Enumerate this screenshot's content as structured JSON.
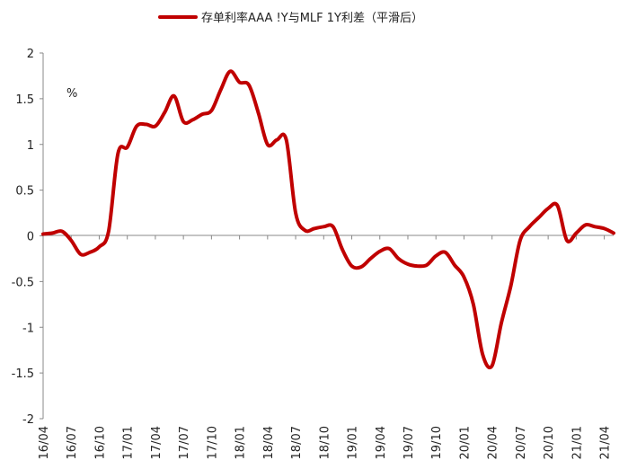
{
  "chart_data": {
    "type": "line",
    "title": "",
    "unit": "%",
    "xlabel": "",
    "ylabel": "",
    "ylim": [
      -2,
      2
    ],
    "yticks": [
      2,
      1.5,
      1,
      0.5,
      0,
      -0.5,
      -1,
      -1.5,
      -2
    ],
    "ytick_labels": [
      "2",
      "1.5",
      "1",
      "0.5",
      "0",
      "-0.5",
      "-1",
      "-1.5",
      "-2"
    ],
    "xlim": [
      "2016-04",
      "2021-05"
    ],
    "xticks": [
      "16/04",
      "16/07",
      "16/10",
      "17/01",
      "17/04",
      "17/07",
      "17/10",
      "18/01",
      "18/04",
      "18/07",
      "18/10",
      "19/01",
      "19/04",
      "19/07",
      "19/10",
      "20/01",
      "20/04",
      "20/07",
      "20/10",
      "21/01",
      "21/04"
    ],
    "grid": false,
    "legend_position": "top-center",
    "colors": {
      "series": "#c00000",
      "axis": "#888888",
      "text": "#222222"
    },
    "series": [
      {
        "name": "存单利率AAA !Y与MLF 1Y利差（平滑后）",
        "x": [
          "2016-04",
          "2016-05",
          "2016-06",
          "2016-07",
          "2016-08",
          "2016-09",
          "2016-10",
          "2016-11",
          "2016-12",
          "2017-01",
          "2017-02",
          "2017-03",
          "2017-04",
          "2017-05",
          "2017-06",
          "2017-07",
          "2017-08",
          "2017-09",
          "2017-10",
          "2017-11",
          "2017-12",
          "2018-01",
          "2018-02",
          "2018-03",
          "2018-04",
          "2018-05",
          "2018-06",
          "2018-07",
          "2018-08",
          "2018-09",
          "2018-10",
          "2018-11",
          "2018-12",
          "2019-01",
          "2019-02",
          "2019-03",
          "2019-04",
          "2019-05",
          "2019-06",
          "2019-07",
          "2019-08",
          "2019-09",
          "2019-10",
          "2019-11",
          "2019-12",
          "2020-01",
          "2020-02",
          "2020-03",
          "2020-04",
          "2020-05",
          "2020-06",
          "2020-07",
          "2020-08",
          "2020-09",
          "2020-10",
          "2020-11",
          "2020-12",
          "2021-01",
          "2021-02",
          "2021-03",
          "2021-04",
          "2021-05"
        ],
        "values": [
          0.02,
          0.03,
          0.05,
          -0.05,
          -0.2,
          -0.18,
          -0.12,
          0.05,
          0.9,
          0.97,
          1.2,
          1.22,
          1.2,
          1.35,
          1.53,
          1.25,
          1.27,
          1.33,
          1.37,
          1.6,
          1.8,
          1.68,
          1.65,
          1.35,
          1.0,
          1.05,
          1.05,
          0.25,
          0.06,
          0.08,
          0.1,
          0.1,
          -0.15,
          -0.33,
          -0.34,
          -0.25,
          -0.17,
          -0.14,
          -0.25,
          -0.31,
          -0.33,
          -0.32,
          -0.22,
          -0.18,
          -0.32,
          -0.45,
          -0.75,
          -1.3,
          -1.42,
          -0.95,
          -0.55,
          -0.05,
          0.1,
          0.2,
          0.3,
          0.33,
          -0.05,
          0.03,
          0.12,
          0.1,
          0.08,
          0.03
        ]
      }
    ]
  }
}
